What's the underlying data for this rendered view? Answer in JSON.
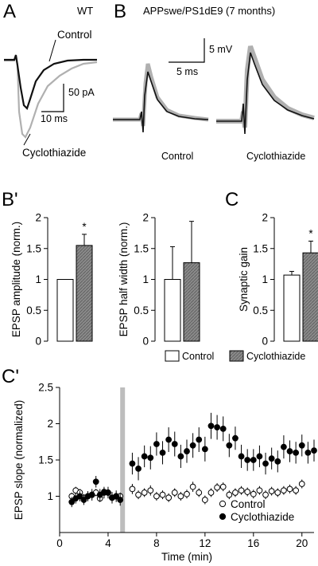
{
  "panels": {
    "A": "A",
    "B": "B",
    "Bp": "B'",
    "C": "C",
    "Cp": "C'"
  },
  "panel_a": {
    "title": "WT",
    "control_label": "Control",
    "drug_label": "Cyclothiazide",
    "scale_y": "50 pA",
    "scale_x": "10 ms"
  },
  "panel_b": {
    "title": "APPswe/PS1dE9 (7 months)",
    "scale_y": "5 mV",
    "scale_x": "5 ms",
    "control_label": "Control",
    "drug_label": "Cyclothiazide"
  },
  "legend": {
    "control": "Control",
    "drug": "Cyclothiazide"
  },
  "colors": {
    "drug_fill": "#8a8a8a",
    "trace_gray": "#b0b0b0",
    "trace_black": "#111111"
  },
  "chart_data": [
    {
      "type": "bar",
      "id": "Bp-left",
      "ylabel": "EPSP amplitude (norm.)",
      "ylim": [
        0,
        2
      ],
      "yticks": [
        "0",
        "0.5",
        "1",
        "1.5",
        "2"
      ],
      "categories": [
        "Control",
        "Cyclothiazide"
      ],
      "values": [
        1.0,
        1.55
      ],
      "errors": [
        0.0,
        0.18
      ],
      "annotation": "*"
    },
    {
      "type": "bar",
      "id": "Bp-right",
      "ylabel": "EPSP half width (norm.)",
      "ylim": [
        0,
        2
      ],
      "yticks": [
        "0",
        "0.5",
        "1",
        "1.5",
        "2"
      ],
      "categories": [
        "Control",
        "Cyclothiazide"
      ],
      "values": [
        1.0,
        1.27
      ],
      "errors": [
        0.53,
        0.67
      ]
    },
    {
      "type": "bar",
      "id": "C",
      "ylabel": "Synaptic gain",
      "ylim": [
        0,
        2
      ],
      "yticks": [
        "0",
        "0.5",
        "1",
        "1.5",
        "2"
      ],
      "categories": [
        "Control",
        "Cyclothiazide"
      ],
      "values": [
        1.07,
        1.43
      ],
      "errors": [
        0.06,
        0.19
      ],
      "annotation": "*"
    },
    {
      "type": "scatter",
      "id": "Cp",
      "xlabel": "Time (min)",
      "ylabel": "EPSP slope (normalized)",
      "xlim": [
        0,
        21
      ],
      "ylim": [
        0.5,
        2.5
      ],
      "xticks": [
        "0",
        "4",
        "8",
        "12",
        "16",
        "20"
      ],
      "yticks": [
        "1",
        "1.5",
        "2",
        "2.5"
      ],
      "shaded_interval": [
        5.0,
        5.3
      ],
      "legend": [
        "Control",
        "Cyclothiazide"
      ],
      "series": [
        {
          "name": "Control",
          "x": [
            1,
            1.33,
            1.67,
            2,
            2.33,
            2.67,
            3,
            3.33,
            3.67,
            4,
            4.33,
            4.67,
            5,
            6,
            6.5,
            7,
            7.5,
            8,
            8.5,
            9,
            9.5,
            10,
            10.5,
            11,
            11.5,
            12,
            12.5,
            13,
            13.5,
            14,
            14.5,
            15,
            15.5,
            16,
            16.5,
            17,
            17.5,
            18,
            18.5,
            19,
            19.5,
            20
          ],
          "y": [
            1.0,
            1.08,
            1.05,
            0.98,
            1.0,
            1.02,
            1.05,
            0.97,
            1.06,
            1.05,
            0.98,
            1.0,
            1.0,
            1.1,
            1.02,
            1.05,
            1.08,
            1.0,
            1.02,
            0.98,
            1.05,
            1.0,
            1.03,
            1.13,
            1.05,
            0.95,
            1.05,
            1.12,
            1.13,
            1.02,
            1.05,
            1.08,
            1.06,
            1.03,
            1.08,
            1.02,
            1.07,
            1.05,
            1.08,
            1.1,
            1.08,
            1.17
          ],
          "err": [
            0.05,
            0.05,
            0.05,
            0.05,
            0.05,
            0.05,
            0.05,
            0.05,
            0.05,
            0.05,
            0.05,
            0.05,
            0.05,
            0.07,
            0.06,
            0.06,
            0.07,
            0.06,
            0.06,
            0.06,
            0.06,
            0.06,
            0.06,
            0.07,
            0.06,
            0.06,
            0.06,
            0.06,
            0.06,
            0.06,
            0.06,
            0.06,
            0.06,
            0.06,
            0.06,
            0.06,
            0.06,
            0.06,
            0.06,
            0.06,
            0.06,
            0.06
          ]
        },
        {
          "name": "Cyclothiazide",
          "x": [
            1,
            1.33,
            1.67,
            2,
            2.33,
            2.67,
            3,
            3.33,
            3.67,
            4,
            4.33,
            4.67,
            5,
            6,
            6.5,
            7,
            7.5,
            8,
            8.5,
            9,
            9.5,
            10,
            10.5,
            11,
            11.5,
            12,
            12.5,
            13,
            13.5,
            14,
            14.5,
            15,
            15.5,
            16,
            16.5,
            17,
            17.5,
            18,
            18.5,
            19,
            19.5,
            20,
            20.5,
            21
          ],
          "y": [
            0.92,
            0.97,
            1.0,
            0.95,
            1.0,
            1.02,
            1.2,
            1.02,
            1.05,
            1.05,
            0.98,
            1.0,
            0.95,
            1.45,
            1.38,
            1.55,
            1.53,
            1.72,
            1.6,
            1.78,
            1.72,
            1.55,
            1.62,
            1.7,
            1.78,
            1.65,
            1.97,
            1.95,
            1.93,
            1.7,
            1.8,
            1.55,
            1.5,
            1.5,
            1.55,
            1.45,
            1.52,
            1.48,
            1.68,
            1.62,
            1.6,
            1.7,
            1.6,
            1.63
          ],
          "err": [
            0.07,
            0.07,
            0.07,
            0.07,
            0.07,
            0.08,
            0.08,
            0.08,
            0.08,
            0.08,
            0.08,
            0.08,
            0.08,
            0.15,
            0.16,
            0.15,
            0.16,
            0.16,
            0.16,
            0.17,
            0.17,
            0.16,
            0.16,
            0.17,
            0.17,
            0.17,
            0.18,
            0.17,
            0.17,
            0.16,
            0.16,
            0.16,
            0.15,
            0.15,
            0.15,
            0.15,
            0.15,
            0.15,
            0.16,
            0.15,
            0.15,
            0.15,
            0.15,
            0.15
          ]
        }
      ]
    }
  ]
}
